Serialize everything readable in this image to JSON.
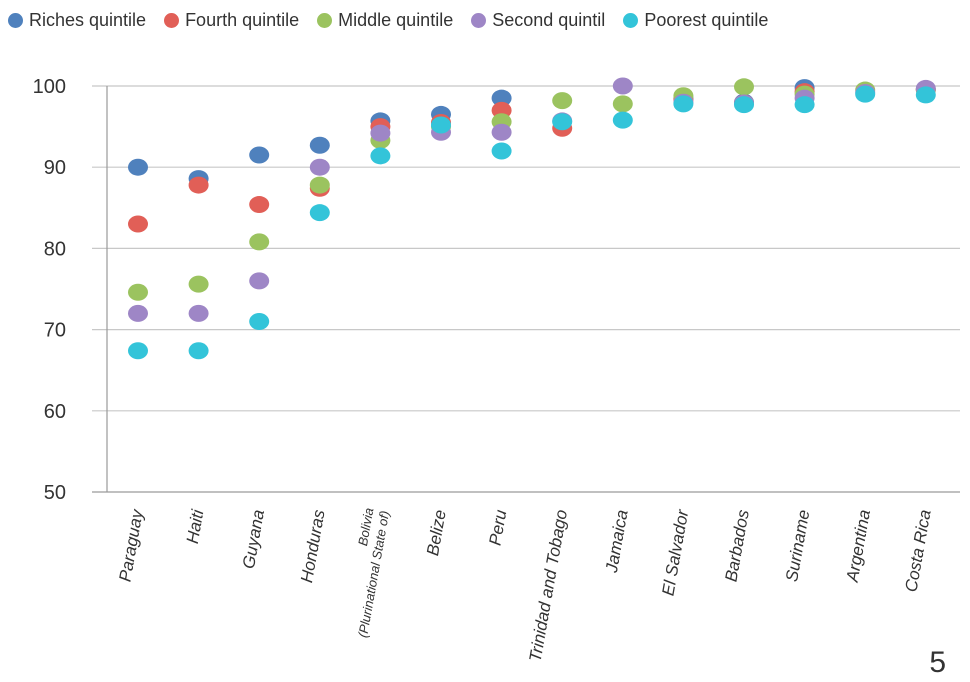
{
  "chart_data": {
    "type": "scatter",
    "title": "",
    "xlabel": "",
    "ylabel": "",
    "ylim": [
      50,
      100
    ],
    "yticks": [
      "50",
      "60",
      "70",
      "80",
      "90",
      "100"
    ],
    "grid": true,
    "legend_position": "top",
    "categories": [
      [
        "Paraguay"
      ],
      [
        "Haiti"
      ],
      [
        "Guyana"
      ],
      [
        "Honduras"
      ],
      [
        "Bolivia",
        "(Plurinational State of)"
      ],
      [
        "Belize"
      ],
      [
        "Peru"
      ],
      [
        "Trinidad and Tobago"
      ],
      [
        "Jamaica"
      ],
      [
        "El Salvador"
      ],
      [
        "Barbados"
      ],
      [
        "Suriname"
      ],
      [
        "Argentina"
      ],
      [
        "Costa Rica"
      ]
    ],
    "series": [
      {
        "name": "Riches quintile",
        "color": "#4f81bd",
        "values": [
          90,
          88.6,
          91.5,
          92.7,
          95.7,
          96.5,
          98.5,
          null,
          null,
          98.5,
          98.0,
          99.8,
          null,
          99.6
        ]
      },
      {
        "name": "Fourth quintile",
        "color": "#e15f57",
        "values": [
          83,
          87.8,
          85.4,
          87.4,
          95.0,
          95.5,
          97.0,
          94.8,
          null,
          98.3,
          97.9,
          99.3,
          null,
          99.5
        ]
      },
      {
        "name": "Middle quintile",
        "color": "#9bc35f",
        "values": [
          74.6,
          75.6,
          80.8,
          87.8,
          93.3,
          95.0,
          95.6,
          98.2,
          97.8,
          98.8,
          99.9,
          99.0,
          99.5,
          99.6
        ]
      },
      {
        "name": "Second quintil",
        "color": "#9e86c6",
        "values": [
          72,
          72,
          76,
          90,
          94.2,
          94.3,
          94.3,
          95.7,
          100,
          98.0,
          97.9,
          98.5,
          99.2,
          99.7
        ]
      },
      {
        "name": "Poorest quintile",
        "color": "#33c4d9",
        "values": [
          67.4,
          67.4,
          71,
          84.4,
          91.4,
          95.2,
          92.0,
          95.6,
          95.8,
          97.8,
          97.7,
          97.7,
          99.0,
          98.9
        ]
      }
    ]
  },
  "page_number": "5"
}
